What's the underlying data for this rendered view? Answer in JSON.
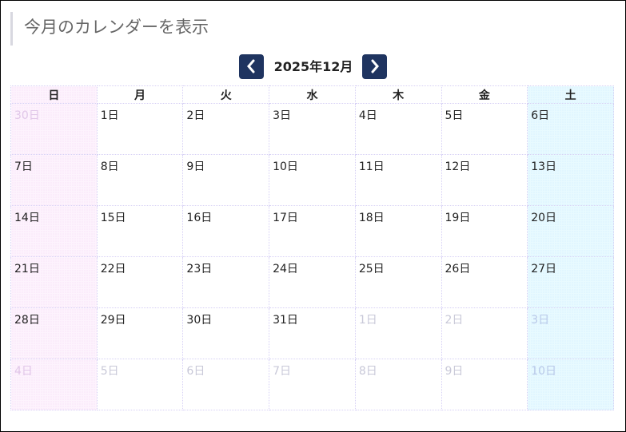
{
  "title": "今月のカレンダーを表示",
  "nav": {
    "month_label": "2025年12月",
    "prev_icon": "chevron-left-icon",
    "next_icon": "chevron-right-icon"
  },
  "colors": {
    "nav_button": "#1f3460",
    "sunday_bg": "#fdf3fd",
    "saturday_bg": "#e8faff",
    "grid": "#d6d0f5"
  },
  "weekdays": [
    "日",
    "月",
    "火",
    "水",
    "木",
    "金",
    "土"
  ],
  "weeks": [
    [
      {
        "label": "30日",
        "other": true
      },
      {
        "label": "1日"
      },
      {
        "label": "2日"
      },
      {
        "label": "3日"
      },
      {
        "label": "4日"
      },
      {
        "label": "5日"
      },
      {
        "label": "6日"
      }
    ],
    [
      {
        "label": "7日"
      },
      {
        "label": "8日"
      },
      {
        "label": "9日"
      },
      {
        "label": "10日"
      },
      {
        "label": "11日"
      },
      {
        "label": "12日"
      },
      {
        "label": "13日"
      }
    ],
    [
      {
        "label": "14日"
      },
      {
        "label": "15日"
      },
      {
        "label": "16日"
      },
      {
        "label": "17日"
      },
      {
        "label": "18日"
      },
      {
        "label": "19日"
      },
      {
        "label": "20日"
      }
    ],
    [
      {
        "label": "21日"
      },
      {
        "label": "22日"
      },
      {
        "label": "23日"
      },
      {
        "label": "24日"
      },
      {
        "label": "25日"
      },
      {
        "label": "26日"
      },
      {
        "label": "27日"
      }
    ],
    [
      {
        "label": "28日"
      },
      {
        "label": "29日"
      },
      {
        "label": "30日"
      },
      {
        "label": "31日"
      },
      {
        "label": "1日",
        "other": true
      },
      {
        "label": "2日",
        "other": true
      },
      {
        "label": "3日",
        "other": true
      }
    ],
    [
      {
        "label": "4日",
        "other": true
      },
      {
        "label": "5日",
        "other": true
      },
      {
        "label": "6日",
        "other": true
      },
      {
        "label": "7日",
        "other": true
      },
      {
        "label": "8日",
        "other": true
      },
      {
        "label": "9日",
        "other": true
      },
      {
        "label": "10日",
        "other": true
      }
    ]
  ]
}
